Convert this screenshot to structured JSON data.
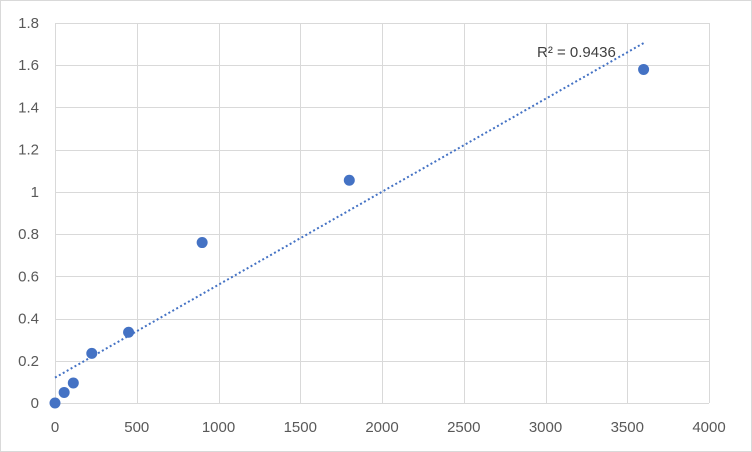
{
  "chart_data": {
    "type": "scatter",
    "title": "",
    "xlabel": "",
    "ylabel": "",
    "xlim": [
      0,
      4000
    ],
    "ylim": [
      0,
      1.8
    ],
    "x_ticks": [
      0,
      500,
      1000,
      1500,
      2000,
      2500,
      3000,
      3500,
      4000
    ],
    "y_ticks": [
      0,
      0.2,
      0.4,
      0.6,
      0.8,
      1,
      1.2,
      1.4,
      1.6,
      1.8
    ],
    "x_tick_labels": [
      "0",
      "500",
      "1000",
      "1500",
      "2000",
      "2500",
      "3000",
      "3500",
      "4000"
    ],
    "y_tick_labels": [
      "0",
      "0.2",
      "0.4",
      "0.6",
      "0.8",
      "1",
      "1.2",
      "1.4",
      "1.6",
      "1.8"
    ],
    "grid": true,
    "legend": "none",
    "series": [
      {
        "points": [
          {
            "x": 0,
            "y": 0.0
          },
          {
            "x": 56,
            "y": 0.05
          },
          {
            "x": 112,
            "y": 0.095
          },
          {
            "x": 225,
            "y": 0.235
          },
          {
            "x": 450,
            "y": 0.335
          },
          {
            "x": 900,
            "y": 0.76
          },
          {
            "x": 1800,
            "y": 1.055
          },
          {
            "x": 3600,
            "y": 1.58
          }
        ],
        "color": "#4472c4"
      }
    ],
    "trendline": {
      "type": "linear",
      "x_range": [
        0,
        3600
      ],
      "y_range": [
        0.12,
        1.705
      ],
      "color": "#4472c4",
      "style": "dotted",
      "label": "R² = 0.9436"
    },
    "colors": {
      "grid": "#d9d9d9",
      "axis_text": "#595959",
      "marker": "#4472c4"
    }
  }
}
